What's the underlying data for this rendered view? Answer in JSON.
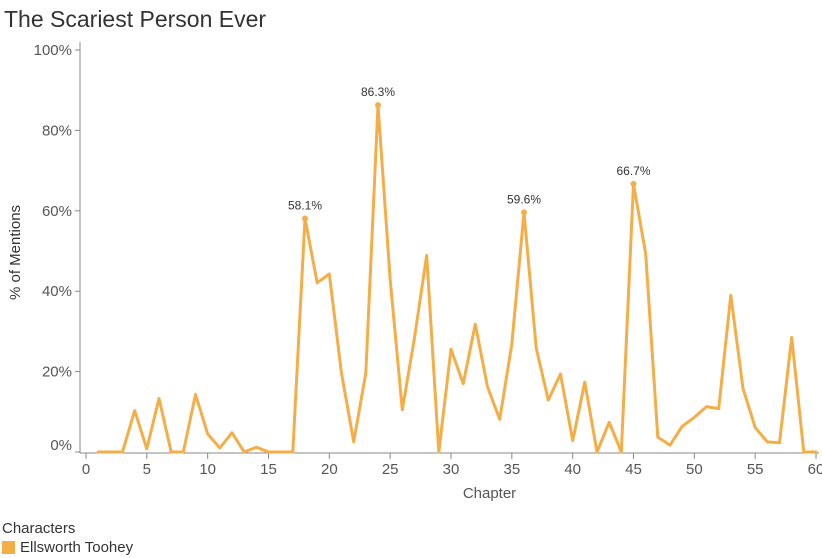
{
  "chart_data": {
    "type": "line",
    "title": "The Scariest Person Ever",
    "xlabel": "Chapter",
    "ylabel": "% of Mentions",
    "xlim": [
      0,
      60
    ],
    "ylim": [
      0,
      100
    ],
    "x_ticks": [
      0,
      5,
      10,
      15,
      20,
      25,
      30,
      35,
      40,
      45,
      50,
      55,
      60
    ],
    "y_ticks": [
      0,
      20,
      40,
      60,
      80,
      100
    ],
    "y_tick_labels": [
      "0%",
      "20%",
      "40%",
      "60%",
      "80%",
      "100%"
    ],
    "grid": false,
    "legend": {
      "title": "Characters",
      "placement": "bottom-left"
    },
    "series": [
      {
        "name": "Ellsworth Toohey",
        "color": "#F5AD47",
        "x": [
          1,
          2,
          3,
          4,
          5,
          6,
          7,
          8,
          9,
          10,
          11,
          12,
          13,
          14,
          15,
          16,
          17,
          18,
          19,
          20,
          21,
          22,
          23,
          24,
          25,
          26,
          27,
          28,
          29,
          30,
          31,
          32,
          33,
          34,
          35,
          36,
          37,
          38,
          39,
          40,
          41,
          42,
          43,
          44,
          45,
          46,
          47,
          48,
          49,
          50,
          51,
          52,
          53,
          54,
          55,
          56,
          57,
          58,
          59,
          60
        ],
        "y": [
          0,
          0,
          0,
          10.3,
          0.8,
          13.3,
          0,
          0,
          14.3,
          4.5,
          1,
          4.8,
          0,
          1.2,
          0,
          0,
          0,
          58.1,
          42.1,
          44.3,
          19.6,
          2.5,
          19.6,
          86.3,
          42.8,
          10.5,
          28.4,
          48.9,
          0,
          25.6,
          17,
          31.8,
          16.2,
          8.1,
          26.8,
          59.6,
          25.9,
          12.9,
          19.4,
          2.8,
          17.4,
          0,
          7.4,
          0,
          66.7,
          49.3,
          3.7,
          1.7,
          6.4,
          8.6,
          11.3,
          10.8,
          39,
          15.8,
          6.1,
          2.5,
          2.3,
          28.5,
          0,
          0
        ],
        "data_labels": [
          {
            "x": 18,
            "y": 58.1,
            "text": "58.1%"
          },
          {
            "x": 24,
            "y": 86.3,
            "text": "86.3%"
          },
          {
            "x": 36,
            "y": 59.6,
            "text": "59.6%"
          },
          {
            "x": 45,
            "y": 66.7,
            "text": "66.7%"
          }
        ]
      }
    ]
  }
}
